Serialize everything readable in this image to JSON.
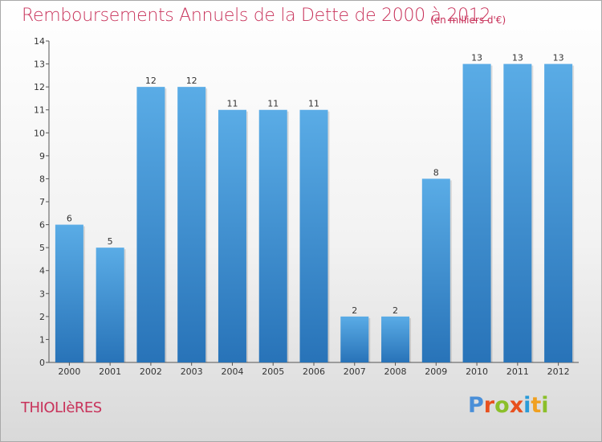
{
  "header": {
    "title": "Remboursements Annuels de la Dette de 2000 à 2012",
    "subtitle": "(en milliers d'€)"
  },
  "footer": {
    "commune": "THIOLIèRES",
    "logo_letters": [
      "P",
      "r",
      "o",
      "x",
      "i",
      "t",
      "i"
    ],
    "logo_colors": [
      "#4a8fd8",
      "#e8501e",
      "#8bbf2a",
      "#e8501e",
      "#2a9bd8",
      "#f0a020",
      "#8bbf2a"
    ]
  },
  "colors": {
    "bar_top": "#5aace6",
    "bar_bottom": "#2873b8",
    "accent": "#c8325a"
  },
  "chart_data": {
    "type": "bar",
    "categories": [
      "2000",
      "2001",
      "2002",
      "2003",
      "2004",
      "2005",
      "2006",
      "2007",
      "2008",
      "2009",
      "2010",
      "2011",
      "2012"
    ],
    "values": [
      6,
      5,
      12,
      12,
      11,
      11,
      11,
      2,
      2,
      8,
      13,
      13,
      13
    ],
    "data_labels": [
      "6",
      "5",
      "12",
      "12",
      "11",
      "11",
      "11",
      "2",
      "2",
      "8",
      "13",
      "13",
      "13"
    ],
    "yticks": [
      0,
      1,
      2,
      3,
      4,
      5,
      6,
      7,
      8,
      9,
      10,
      11,
      12,
      13,
      14
    ],
    "ylim": [
      0,
      14
    ],
    "grid": false
  }
}
